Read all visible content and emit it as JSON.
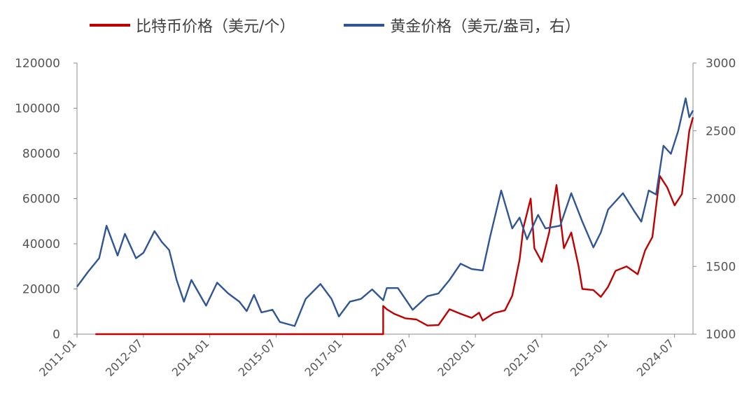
{
  "chart_data": {
    "type": "line",
    "title": "",
    "legend_position": "top",
    "grid": false,
    "x_tick_labels": [
      "2011-01",
      "2012-07",
      "2014-01",
      "2015-07",
      "2017-01",
      "2018-07",
      "2020-01",
      "2021-07",
      "2023-01",
      "2024-07"
    ],
    "y_left": {
      "ylim": [
        0,
        120000
      ],
      "ticks": [
        "0",
        "20000",
        "40000",
        "60000",
        "80000",
        "100000",
        "120000"
      ]
    },
    "y_right": {
      "ylim": [
        1000,
        3000
      ],
      "ticks": [
        "1000",
        "1500",
        "2000",
        "2500",
        "3000"
      ]
    },
    "x_range": [
      "2011-01",
      "2024-12"
    ],
    "series": [
      {
        "name": "比特币价格（美元/个）",
        "axis": "left",
        "color": "#C00000",
        "points": [
          [
            "2011-06",
            0
          ],
          [
            "2013-01",
            0
          ],
          [
            "2014-06",
            0
          ],
          [
            "2016-01",
            0
          ],
          [
            "2017-06",
            0
          ],
          [
            "2017-12",
            0
          ],
          [
            "2017-12",
            12500
          ],
          [
            "2018-01",
            11000
          ],
          [
            "2018-03",
            9000
          ],
          [
            "2018-06",
            7000
          ],
          [
            "2018-09",
            6500
          ],
          [
            "2018-12",
            3800
          ],
          [
            "2019-03",
            4000
          ],
          [
            "2019-06",
            11000
          ],
          [
            "2019-09",
            9000
          ],
          [
            "2019-12",
            7200
          ],
          [
            "2020-02",
            9500
          ],
          [
            "2020-03",
            6000
          ],
          [
            "2020-06",
            9300
          ],
          [
            "2020-09",
            10500
          ],
          [
            "2020-11",
            17000
          ],
          [
            "2021-01",
            33000
          ],
          [
            "2021-02",
            47000
          ],
          [
            "2021-04",
            60000
          ],
          [
            "2021-05",
            38000
          ],
          [
            "2021-07",
            32000
          ],
          [
            "2021-09",
            45000
          ],
          [
            "2021-11",
            66000
          ],
          [
            "2022-01",
            38000
          ],
          [
            "2022-03",
            45000
          ],
          [
            "2022-05",
            30000
          ],
          [
            "2022-06",
            20000
          ],
          [
            "2022-09",
            19500
          ],
          [
            "2022-11",
            16500
          ],
          [
            "2023-01",
            21000
          ],
          [
            "2023-03",
            28000
          ],
          [
            "2023-06",
            30000
          ],
          [
            "2023-09",
            26500
          ],
          [
            "2023-11",
            37000
          ],
          [
            "2024-01",
            43000
          ],
          [
            "2024-03",
            70000
          ],
          [
            "2024-05",
            65000
          ],
          [
            "2024-07",
            57000
          ],
          [
            "2024-09",
            62000
          ],
          [
            "2024-11",
            90000
          ],
          [
            "2024-12",
            96000
          ]
        ]
      },
      {
        "name": "黄金价格（美元/盎司，右）",
        "axis": "right",
        "color": "#2F5597",
        "points": [
          [
            "2011-01",
            1350
          ],
          [
            "2011-04",
            1460
          ],
          [
            "2011-07",
            1560
          ],
          [
            "2011-09",
            1800
          ],
          [
            "2011-12",
            1580
          ],
          [
            "2012-02",
            1740
          ],
          [
            "2012-05",
            1560
          ],
          [
            "2012-07",
            1600
          ],
          [
            "2012-10",
            1760
          ],
          [
            "2012-12",
            1680
          ],
          [
            "2013-02",
            1620
          ],
          [
            "2013-04",
            1400
          ],
          [
            "2013-06",
            1240
          ],
          [
            "2013-08",
            1400
          ],
          [
            "2013-12",
            1210
          ],
          [
            "2014-03",
            1380
          ],
          [
            "2014-06",
            1300
          ],
          [
            "2014-09",
            1240
          ],
          [
            "2014-11",
            1170
          ],
          [
            "2015-01",
            1290
          ],
          [
            "2015-03",
            1160
          ],
          [
            "2015-06",
            1180
          ],
          [
            "2015-08",
            1090
          ],
          [
            "2015-12",
            1060
          ],
          [
            "2016-03",
            1260
          ],
          [
            "2016-07",
            1370
          ],
          [
            "2016-10",
            1260
          ],
          [
            "2016-12",
            1130
          ],
          [
            "2017-03",
            1240
          ],
          [
            "2017-06",
            1260
          ],
          [
            "2017-09",
            1330
          ],
          [
            "2017-12",
            1250
          ],
          [
            "2018-01",
            1340
          ],
          [
            "2018-04",
            1340
          ],
          [
            "2018-06",
            1260
          ],
          [
            "2018-08",
            1180
          ],
          [
            "2018-12",
            1280
          ],
          [
            "2019-03",
            1300
          ],
          [
            "2019-06",
            1400
          ],
          [
            "2019-09",
            1520
          ],
          [
            "2019-12",
            1480
          ],
          [
            "2020-03",
            1470
          ],
          [
            "2020-05",
            1720
          ],
          [
            "2020-08",
            2060
          ],
          [
            "2020-11",
            1780
          ],
          [
            "2021-01",
            1860
          ],
          [
            "2021-03",
            1700
          ],
          [
            "2021-06",
            1880
          ],
          [
            "2021-08",
            1780
          ],
          [
            "2021-12",
            1800
          ],
          [
            "2022-03",
            2040
          ],
          [
            "2022-06",
            1830
          ],
          [
            "2022-09",
            1640
          ],
          [
            "2022-11",
            1750
          ],
          [
            "2023-01",
            1920
          ],
          [
            "2023-05",
            2040
          ],
          [
            "2023-08",
            1910
          ],
          [
            "2023-10",
            1830
          ],
          [
            "2023-12",
            2060
          ],
          [
            "2024-02",
            2030
          ],
          [
            "2024-04",
            2390
          ],
          [
            "2024-06",
            2330
          ],
          [
            "2024-08",
            2500
          ],
          [
            "2024-10",
            2740
          ],
          [
            "2024-11",
            2600
          ],
          [
            "2024-12",
            2650
          ]
        ]
      }
    ]
  }
}
